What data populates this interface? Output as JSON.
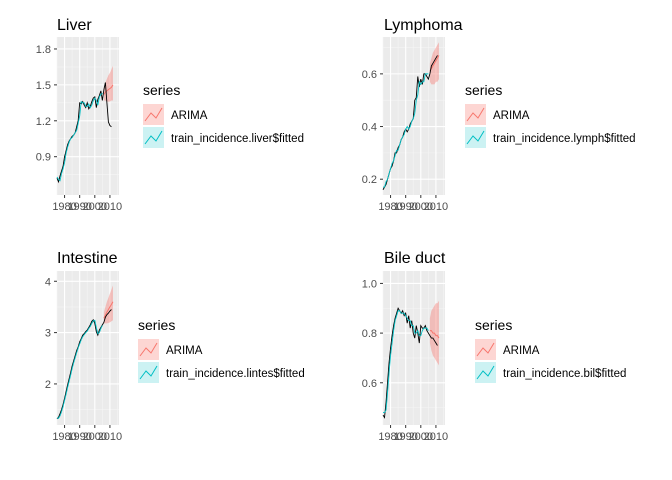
{
  "colors": {
    "panel_bg": "#ebebeb",
    "grid_major": "#ffffff",
    "observed": "#000000",
    "fitted": "#00bfc4",
    "forecast": "#f8766d",
    "forecast_band": "#f8766d"
  },
  "legend_title": "series",
  "chart_data": [
    {
      "type": "line",
      "title": "Liver",
      "fitted_label": "train_incidence.liver$fitted",
      "forecast_label": "ARIMA",
      "xlim": [
        1975,
        2016
      ],
      "x_ticks": [
        1980,
        1990,
        2000,
        2010
      ],
      "x_tick_labels": [
        "1980",
        "1990",
        "2000",
        "2010"
      ],
      "ylim": [
        0.58,
        1.9
      ],
      "y_ticks": [
        0.9,
        1.2,
        1.5,
        1.8
      ],
      "y_tick_labels": [
        "0.9",
        "1.2",
        "1.5",
        "1.8"
      ],
      "observed": {
        "x": [
          1975,
          1976,
          1977,
          1978,
          1979,
          1980,
          1981,
          1982,
          1983,
          1984,
          1985,
          1986,
          1987,
          1988,
          1989,
          1990,
          1991,
          1992,
          1993,
          1994,
          1995,
          1996,
          1997,
          1998,
          1999,
          2000,
          2001,
          2002,
          2003,
          2004,
          2005,
          2006,
          2007,
          2008,
          2009,
          2010,
          2011
        ],
        "y": [
          0.72,
          0.69,
          0.74,
          0.78,
          0.82,
          0.9,
          0.95,
          1.0,
          1.03,
          1.05,
          1.07,
          1.08,
          1.1,
          1.15,
          1.2,
          1.35,
          1.34,
          1.36,
          1.33,
          1.31,
          1.35,
          1.3,
          1.32,
          1.36,
          1.39,
          1.4,
          1.31,
          1.38,
          1.41,
          1.45,
          1.37,
          1.46,
          1.52,
          1.35,
          1.19,
          1.16,
          1.15
        ]
      },
      "fitted": {
        "x": [
          1975,
          1976,
          1977,
          1978,
          1979,
          1980,
          1981,
          1982,
          1983,
          1984,
          1985,
          1986,
          1987,
          1988,
          1989,
          1990,
          1991,
          1992,
          1993,
          1994,
          1995,
          1996,
          1997,
          1998,
          1999,
          2000,
          2001,
          2002,
          2003,
          2004,
          2005
        ],
        "y": [
          0.73,
          0.71,
          0.7,
          0.76,
          0.8,
          0.85,
          0.93,
          0.98,
          1.02,
          1.05,
          1.06,
          1.08,
          1.1,
          1.12,
          1.18,
          1.24,
          1.36,
          1.35,
          1.35,
          1.32,
          1.32,
          1.34,
          1.31,
          1.33,
          1.37,
          1.39,
          1.37,
          1.33,
          1.4,
          1.42,
          1.43
        ]
      },
      "forecast": {
        "x": [
          2006,
          2007,
          2008,
          2009,
          2010,
          2011,
          2012
        ],
        "mean": [
          1.42,
          1.44,
          1.45,
          1.46,
          1.47,
          1.48,
          1.5
        ],
        "lower": [
          1.37,
          1.37,
          1.36,
          1.36,
          1.36,
          1.37,
          1.37
        ],
        "upper": [
          1.48,
          1.52,
          1.55,
          1.58,
          1.6,
          1.63,
          1.66
        ]
      }
    },
    {
      "type": "line",
      "title": "Lymphoma",
      "fitted_label": "train_incidence.lymph$fitted",
      "forecast_label": "ARIMA",
      "xlim": [
        1975,
        2016
      ],
      "x_ticks": [
        1980,
        1990,
        2000,
        2010
      ],
      "x_tick_labels": [
        "1980",
        "1990",
        "2000",
        "2010"
      ],
      "ylim": [
        0.14,
        0.74
      ],
      "y_ticks": [
        0.2,
        0.4,
        0.6
      ],
      "y_tick_labels": [
        "0.2",
        "0.4",
        "0.6"
      ],
      "observed": {
        "x": [
          1975,
          1976,
          1977,
          1978,
          1979,
          1980,
          1981,
          1982,
          1983,
          1984,
          1985,
          1986,
          1987,
          1988,
          1989,
          1990,
          1991,
          1992,
          1993,
          1994,
          1995,
          1996,
          1997,
          1998,
          1999,
          2000,
          2001,
          2002,
          2003,
          2004,
          2005,
          2006,
          2007,
          2008,
          2009,
          2010,
          2011
        ],
        "y": [
          0.16,
          0.17,
          0.18,
          0.2,
          0.22,
          0.24,
          0.25,
          0.27,
          0.3,
          0.3,
          0.32,
          0.33,
          0.35,
          0.36,
          0.38,
          0.39,
          0.38,
          0.39,
          0.41,
          0.42,
          0.43,
          0.5,
          0.51,
          0.59,
          0.55,
          0.58,
          0.56,
          0.6,
          0.6,
          0.59,
          0.58,
          0.6,
          0.63,
          0.64,
          0.65,
          0.66,
          0.67
        ]
      },
      "fitted": {
        "x": [
          1975,
          1976,
          1977,
          1978,
          1979,
          1980,
          1981,
          1982,
          1983,
          1984,
          1985,
          1986,
          1987,
          1988,
          1989,
          1990,
          1991,
          1992,
          1993,
          1994,
          1995,
          1996,
          1997,
          1998,
          1999,
          2000,
          2001,
          2002,
          2003,
          2004,
          2005
        ],
        "y": [
          0.17,
          0.17,
          0.19,
          0.2,
          0.22,
          0.24,
          0.26,
          0.27,
          0.29,
          0.31,
          0.31,
          0.33,
          0.35,
          0.36,
          0.37,
          0.39,
          0.4,
          0.39,
          0.4,
          0.42,
          0.43,
          0.45,
          0.5,
          0.52,
          0.57,
          0.56,
          0.57,
          0.57,
          0.6,
          0.6,
          0.6
        ]
      },
      "forecast": {
        "x": [
          2006,
          2007,
          2008,
          2009,
          2010,
          2011,
          2012
        ],
        "mean": [
          0.61,
          0.62,
          0.63,
          0.64,
          0.65,
          0.66,
          0.67
        ],
        "lower": [
          0.57,
          0.56,
          0.56,
          0.56,
          0.57,
          0.57,
          0.58
        ],
        "upper": [
          0.64,
          0.66,
          0.68,
          0.69,
          0.7,
          0.71,
          0.72
        ]
      }
    },
    {
      "type": "line",
      "title": "Intestine",
      "fitted_label": "train_incidence.lintes$fitted",
      "forecast_label": "ARIMA",
      "xlim": [
        1975,
        2016
      ],
      "x_ticks": [
        1980,
        1990,
        2000,
        2010
      ],
      "x_tick_labels": [
        "1980",
        "1990",
        "2000",
        "2010"
      ],
      "ylim": [
        1.2,
        4.2
      ],
      "y_ticks": [
        2,
        3,
        4
      ],
      "y_tick_labels": [
        "2",
        "3",
        "4"
      ],
      "observed": {
        "x": [
          1975,
          1976,
          1977,
          1978,
          1979,
          1980,
          1981,
          1982,
          1983,
          1984,
          1985,
          1986,
          1987,
          1988,
          1989,
          1990,
          1991,
          1992,
          1993,
          1994,
          1995,
          1996,
          1997,
          1998,
          1999,
          2000,
          2001,
          2002,
          2003,
          2004,
          2005,
          2006,
          2007,
          2008,
          2009,
          2010,
          2011
        ],
        "y": [
          1.32,
          1.35,
          1.42,
          1.5,
          1.6,
          1.72,
          1.85,
          1.98,
          2.1,
          2.22,
          2.35,
          2.45,
          2.55,
          2.65,
          2.72,
          2.82,
          2.88,
          2.95,
          2.98,
          3.02,
          3.05,
          3.1,
          3.15,
          3.22,
          3.25,
          3.18,
          3.02,
          2.95,
          3.05,
          3.1,
          3.15,
          3.2,
          3.3,
          3.35,
          3.38,
          3.42,
          3.45
        ]
      },
      "fitted": {
        "x": [
          1975,
          1976,
          1977,
          1978,
          1979,
          1980,
          1981,
          1982,
          1983,
          1984,
          1985,
          1986,
          1987,
          1988,
          1989,
          1990,
          1991,
          1992,
          1993,
          1994,
          1995,
          1996,
          1997,
          1998,
          1999,
          2000,
          2001,
          2002,
          2003,
          2004,
          2005
        ],
        "y": [
          1.34,
          1.33,
          1.38,
          1.46,
          1.56,
          1.68,
          1.8,
          1.93,
          2.05,
          2.17,
          2.3,
          2.41,
          2.51,
          2.61,
          2.7,
          2.78,
          2.86,
          2.92,
          2.96,
          3.0,
          3.03,
          3.08,
          3.12,
          3.18,
          3.23,
          3.24,
          3.1,
          2.98,
          3.0,
          3.08,
          3.14
        ]
      },
      "forecast": {
        "x": [
          2006,
          2007,
          2008,
          2009,
          2010,
          2011,
          2012
        ],
        "mean": [
          3.28,
          3.34,
          3.4,
          3.45,
          3.5,
          3.55,
          3.6
        ],
        "lower": [
          3.18,
          3.18,
          3.18,
          3.19,
          3.2,
          3.22,
          3.24
        ],
        "upper": [
          3.4,
          3.5,
          3.6,
          3.68,
          3.76,
          3.84,
          3.92
        ]
      }
    },
    {
      "type": "line",
      "title": "Bile duct",
      "fitted_label": "train_incidence.bil$fitted",
      "forecast_label": "ARIMA",
      "xlim": [
        1975,
        2016
      ],
      "x_ticks": [
        1980,
        1990,
        2000,
        2010
      ],
      "x_tick_labels": [
        "1980",
        "1990",
        "2000",
        "2010"
      ],
      "ylim": [
        0.43,
        1.05
      ],
      "y_ticks": [
        0.6,
        0.8,
        1.0
      ],
      "y_tick_labels": [
        "0.6",
        "0.8",
        "1.0"
      ],
      "observed": {
        "x": [
          1975,
          1976,
          1977,
          1978,
          1979,
          1980,
          1981,
          1982,
          1983,
          1984,
          1985,
          1986,
          1987,
          1988,
          1989,
          1990,
          1991,
          1992,
          1993,
          1994,
          1995,
          1996,
          1997,
          1998,
          1999,
          2000,
          2001,
          2002,
          2003,
          2004,
          2005,
          2006,
          2007,
          2008,
          2009,
          2010,
          2011
        ],
        "y": [
          0.47,
          0.46,
          0.52,
          0.6,
          0.68,
          0.74,
          0.79,
          0.83,
          0.86,
          0.88,
          0.9,
          0.89,
          0.88,
          0.89,
          0.87,
          0.88,
          0.84,
          0.87,
          0.82,
          0.85,
          0.8,
          0.78,
          0.83,
          0.8,
          0.76,
          0.83,
          0.82,
          0.82,
          0.83,
          0.81,
          0.8,
          0.79,
          0.78,
          0.78,
          0.77,
          0.76,
          0.75
        ]
      },
      "fitted": {
        "x": [
          1975,
          1976,
          1977,
          1978,
          1979,
          1980,
          1981,
          1982,
          1983,
          1984,
          1985,
          1986,
          1987,
          1988,
          1989,
          1990,
          1991,
          1992,
          1993,
          1994,
          1995,
          1996,
          1997,
          1998,
          1999,
          2000,
          2001,
          2002,
          2003,
          2004,
          2005
        ],
        "y": [
          0.48,
          0.48,
          0.49,
          0.56,
          0.64,
          0.71,
          0.76,
          0.81,
          0.85,
          0.87,
          0.89,
          0.89,
          0.88,
          0.88,
          0.88,
          0.87,
          0.86,
          0.85,
          0.85,
          0.83,
          0.83,
          0.8,
          0.8,
          0.81,
          0.79,
          0.79,
          0.81,
          0.82,
          0.82,
          0.82,
          0.81
        ]
      },
      "forecast": {
        "x": [
          2006,
          2007,
          2008,
          2009,
          2010,
          2011,
          2012
        ],
        "mean": [
          0.81,
          0.81,
          0.8,
          0.8,
          0.79,
          0.79,
          0.78
        ],
        "lower": [
          0.76,
          0.73,
          0.71,
          0.7,
          0.69,
          0.68,
          0.67
        ],
        "upper": [
          0.86,
          0.89,
          0.9,
          0.91,
          0.92,
          0.92,
          0.93
        ]
      }
    }
  ]
}
